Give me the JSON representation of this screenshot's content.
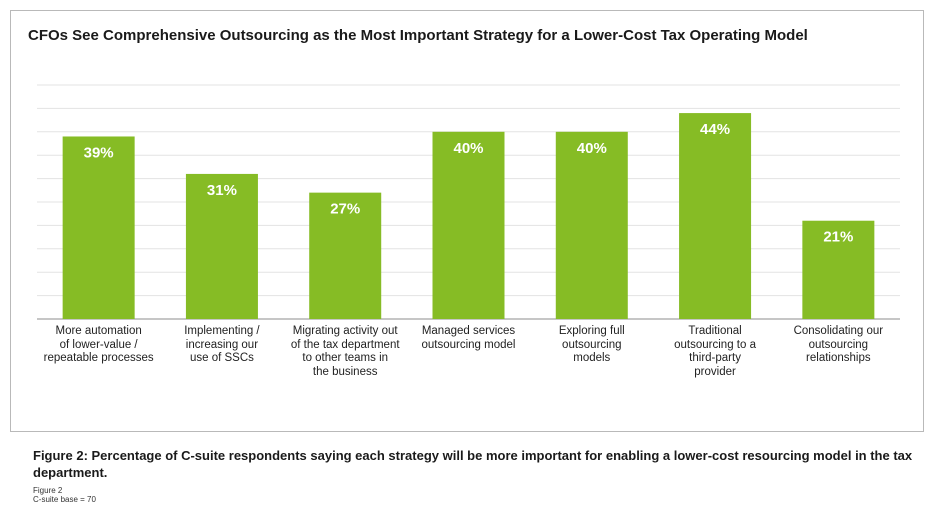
{
  "chart_data": {
    "type": "bar",
    "title": "CFOs See Comprehensive Outsourcing as the Most Important Strategy for a Lower-Cost Tax Operating Model",
    "categories": [
      "More automation of lower-value / repeatable processes",
      "Implementing / increasing our use of SSCs",
      "Migrating activity out of the tax department to other teams in the business",
      "Managed services outsourcing model",
      "Exploring full outsourcing models",
      "Traditional outsourcing to a third-party provider",
      "Consolidating our outsourcing relationships"
    ],
    "category_lines": [
      [
        "More automation",
        "of lower-value /",
        "repeatable processes"
      ],
      [
        "Implementing /",
        "increasing our",
        "use of SSCs"
      ],
      [
        "Migrating activity out",
        "of the tax department",
        "to other teams in",
        "the business"
      ],
      [
        "Managed services",
        "outsourcing model"
      ],
      [
        "Exploring full",
        "outsourcing",
        "models"
      ],
      [
        "Traditional",
        "outsourcing to a",
        "third-party",
        "provider"
      ],
      [
        "Consolidating our",
        "outsourcing",
        "relationships"
      ]
    ],
    "values": [
      39,
      31,
      27,
      40,
      40,
      44,
      21
    ],
    "data_labels": [
      "39%",
      "31%",
      "27%",
      "40%",
      "40%",
      "44%",
      "21%"
    ],
    "ylim": [
      0,
      50
    ],
    "grid": true,
    "colors": {
      "bar": "#86bc25",
      "grid": "#e3e3e3",
      "axis": "#8c8c8c",
      "label": "#ffffff"
    }
  },
  "caption": "Figure 2: Percentage of C-suite respondents saying each strategy will be more important for enabling a lower-cost resourcing model in the tax department.",
  "notes": [
    "Figure 2",
    "C-suite base = 70"
  ]
}
